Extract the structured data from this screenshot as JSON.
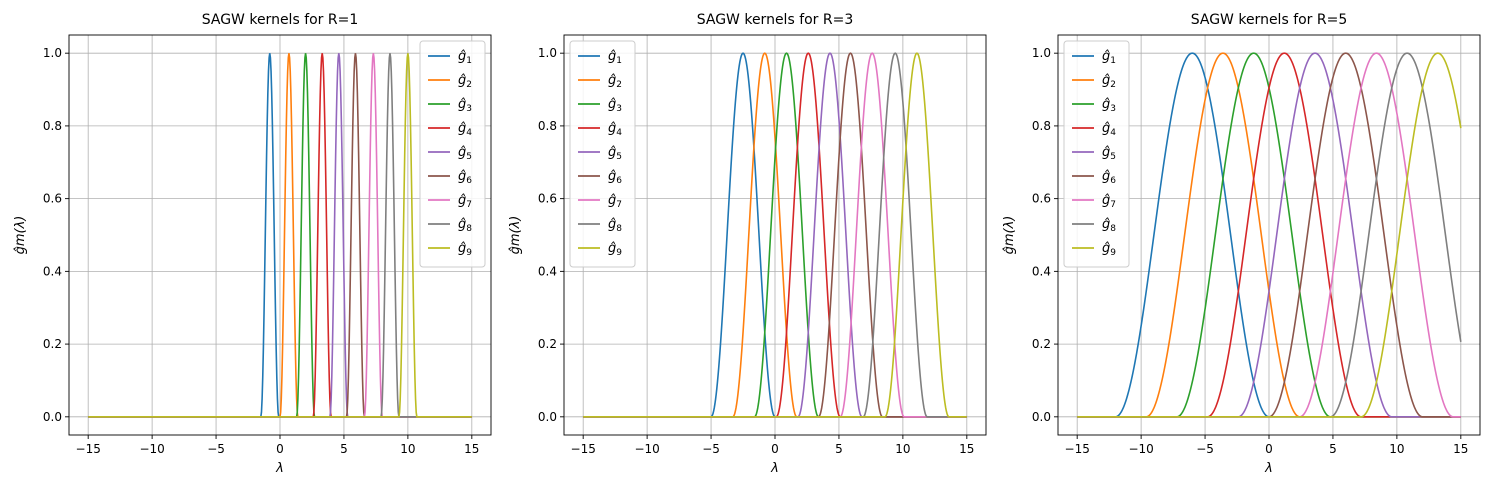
{
  "chart_data": [
    {
      "type": "line",
      "title": "SAGW kernels for R=1",
      "xlabel": "λ",
      "ylabel": "ĝm(λ)",
      "xlim": [
        -16.5,
        16.5
      ],
      "ylim": [
        -0.05,
        1.05
      ],
      "xticks": [
        -15,
        -10,
        -5,
        0,
        5,
        10,
        15
      ],
      "xtick_labels": [
        "−15",
        "−10",
        "−5",
        "0",
        "5",
        "10",
        "15"
      ],
      "yticks": [
        0.0,
        0.2,
        0.4,
        0.6,
        0.8,
        1.0
      ],
      "ytick_labels": [
        "0.0",
        "0.2",
        "0.4",
        "0.6",
        "0.8",
        "1.0"
      ],
      "grid": true,
      "legend": "top-right",
      "x_range": [
        -15,
        15
      ],
      "kernel": "raised cosine",
      "half_width": 0.7,
      "series": [
        {
          "name": "ĝ1",
          "sub": "1",
          "center": -0.8,
          "color": "#1f77b4"
        },
        {
          "name": "ĝ2",
          "sub": "2",
          "center": 0.7,
          "color": "#ff7f0e"
        },
        {
          "name": "ĝ3",
          "sub": "3",
          "center": 2.0,
          "color": "#2ca02c"
        },
        {
          "name": "ĝ4",
          "sub": "4",
          "center": 3.3,
          "color": "#d62728"
        },
        {
          "name": "ĝ5",
          "sub": "5",
          "center": 4.6,
          "color": "#9467bd"
        },
        {
          "name": "ĝ6",
          "sub": "6",
          "center": 5.9,
          "color": "#8c564b"
        },
        {
          "name": "ĝ7",
          "sub": "7",
          "center": 7.3,
          "color": "#e377c2"
        },
        {
          "name": "ĝ8",
          "sub": "8",
          "center": 8.6,
          "color": "#7f7f7f"
        },
        {
          "name": "ĝ9",
          "sub": "9",
          "center": 10.0,
          "color": "#bcbd22"
        }
      ]
    },
    {
      "type": "line",
      "title": "SAGW kernels for R=3",
      "xlabel": "λ",
      "ylabel": "ĝm(λ)",
      "xlim": [
        -16.5,
        16.5
      ],
      "ylim": [
        -0.05,
        1.05
      ],
      "xticks": [
        -15,
        -10,
        -5,
        0,
        5,
        10,
        15
      ],
      "xtick_labels": [
        "−15",
        "−10",
        "−5",
        "0",
        "5",
        "10",
        "15"
      ],
      "yticks": [
        0.0,
        0.2,
        0.4,
        0.6,
        0.8,
        1.0
      ],
      "ytick_labels": [
        "0.0",
        "0.2",
        "0.4",
        "0.6",
        "0.8",
        "1.0"
      ],
      "grid": true,
      "legend": "top-left",
      "x_range": [
        -15,
        15
      ],
      "kernel": "raised cosine",
      "half_width": 2.5,
      "series": [
        {
          "name": "ĝ1",
          "sub": "1",
          "center": -2.5,
          "color": "#1f77b4"
        },
        {
          "name": "ĝ2",
          "sub": "2",
          "center": -0.8,
          "color": "#ff7f0e"
        },
        {
          "name": "ĝ3",
          "sub": "3",
          "center": 0.9,
          "color": "#2ca02c"
        },
        {
          "name": "ĝ4",
          "sub": "4",
          "center": 2.6,
          "color": "#d62728"
        },
        {
          "name": "ĝ5",
          "sub": "5",
          "center": 4.3,
          "color": "#9467bd"
        },
        {
          "name": "ĝ6",
          "sub": "6",
          "center": 5.9,
          "color": "#8c564b"
        },
        {
          "name": "ĝ7",
          "sub": "7",
          "center": 7.6,
          "color": "#e377c2"
        },
        {
          "name": "ĝ8",
          "sub": "8",
          "center": 9.4,
          "color": "#7f7f7f"
        },
        {
          "name": "ĝ9",
          "sub": "9",
          "center": 11.1,
          "color": "#bcbd22"
        }
      ]
    },
    {
      "type": "line",
      "title": "SAGW kernels for R=5",
      "xlabel": "λ",
      "ylabel": "ĝm(λ)",
      "xlim": [
        -16.5,
        16.5
      ],
      "ylim": [
        -0.05,
        1.05
      ],
      "xticks": [
        -15,
        -10,
        -5,
        0,
        5,
        10,
        15
      ],
      "xtick_labels": [
        "−15",
        "−10",
        "−5",
        "0",
        "5",
        "10",
        "15"
      ],
      "yticks": [
        0.0,
        0.2,
        0.4,
        0.6,
        0.8,
        1.0
      ],
      "ytick_labels": [
        "0.0",
        "0.2",
        "0.4",
        "0.6",
        "0.8",
        "1.0"
      ],
      "grid": true,
      "legend": "top-left",
      "x_range": [
        -15,
        15
      ],
      "kernel": "raised cosine",
      "half_width": 6.0,
      "series": [
        {
          "name": "ĝ1",
          "sub": "1",
          "center": -6.0,
          "color": "#1f77b4"
        },
        {
          "name": "ĝ2",
          "sub": "2",
          "center": -3.6,
          "color": "#ff7f0e"
        },
        {
          "name": "ĝ3",
          "sub": "3",
          "center": -1.2,
          "color": "#2ca02c"
        },
        {
          "name": "ĝ4",
          "sub": "4",
          "center": 1.2,
          "color": "#d62728"
        },
        {
          "name": "ĝ5",
          "sub": "5",
          "center": 3.6,
          "color": "#9467bd"
        },
        {
          "name": "ĝ6",
          "sub": "6",
          "center": 6.0,
          "color": "#8c564b"
        },
        {
          "name": "ĝ7",
          "sub": "7",
          "center": 8.4,
          "color": "#e377c2"
        },
        {
          "name": "ĝ8",
          "sub": "8",
          "center": 10.8,
          "color": "#7f7f7f"
        },
        {
          "name": "ĝ9",
          "sub": "9",
          "center": 13.2,
          "color": "#bcbd22"
        }
      ]
    }
  ]
}
